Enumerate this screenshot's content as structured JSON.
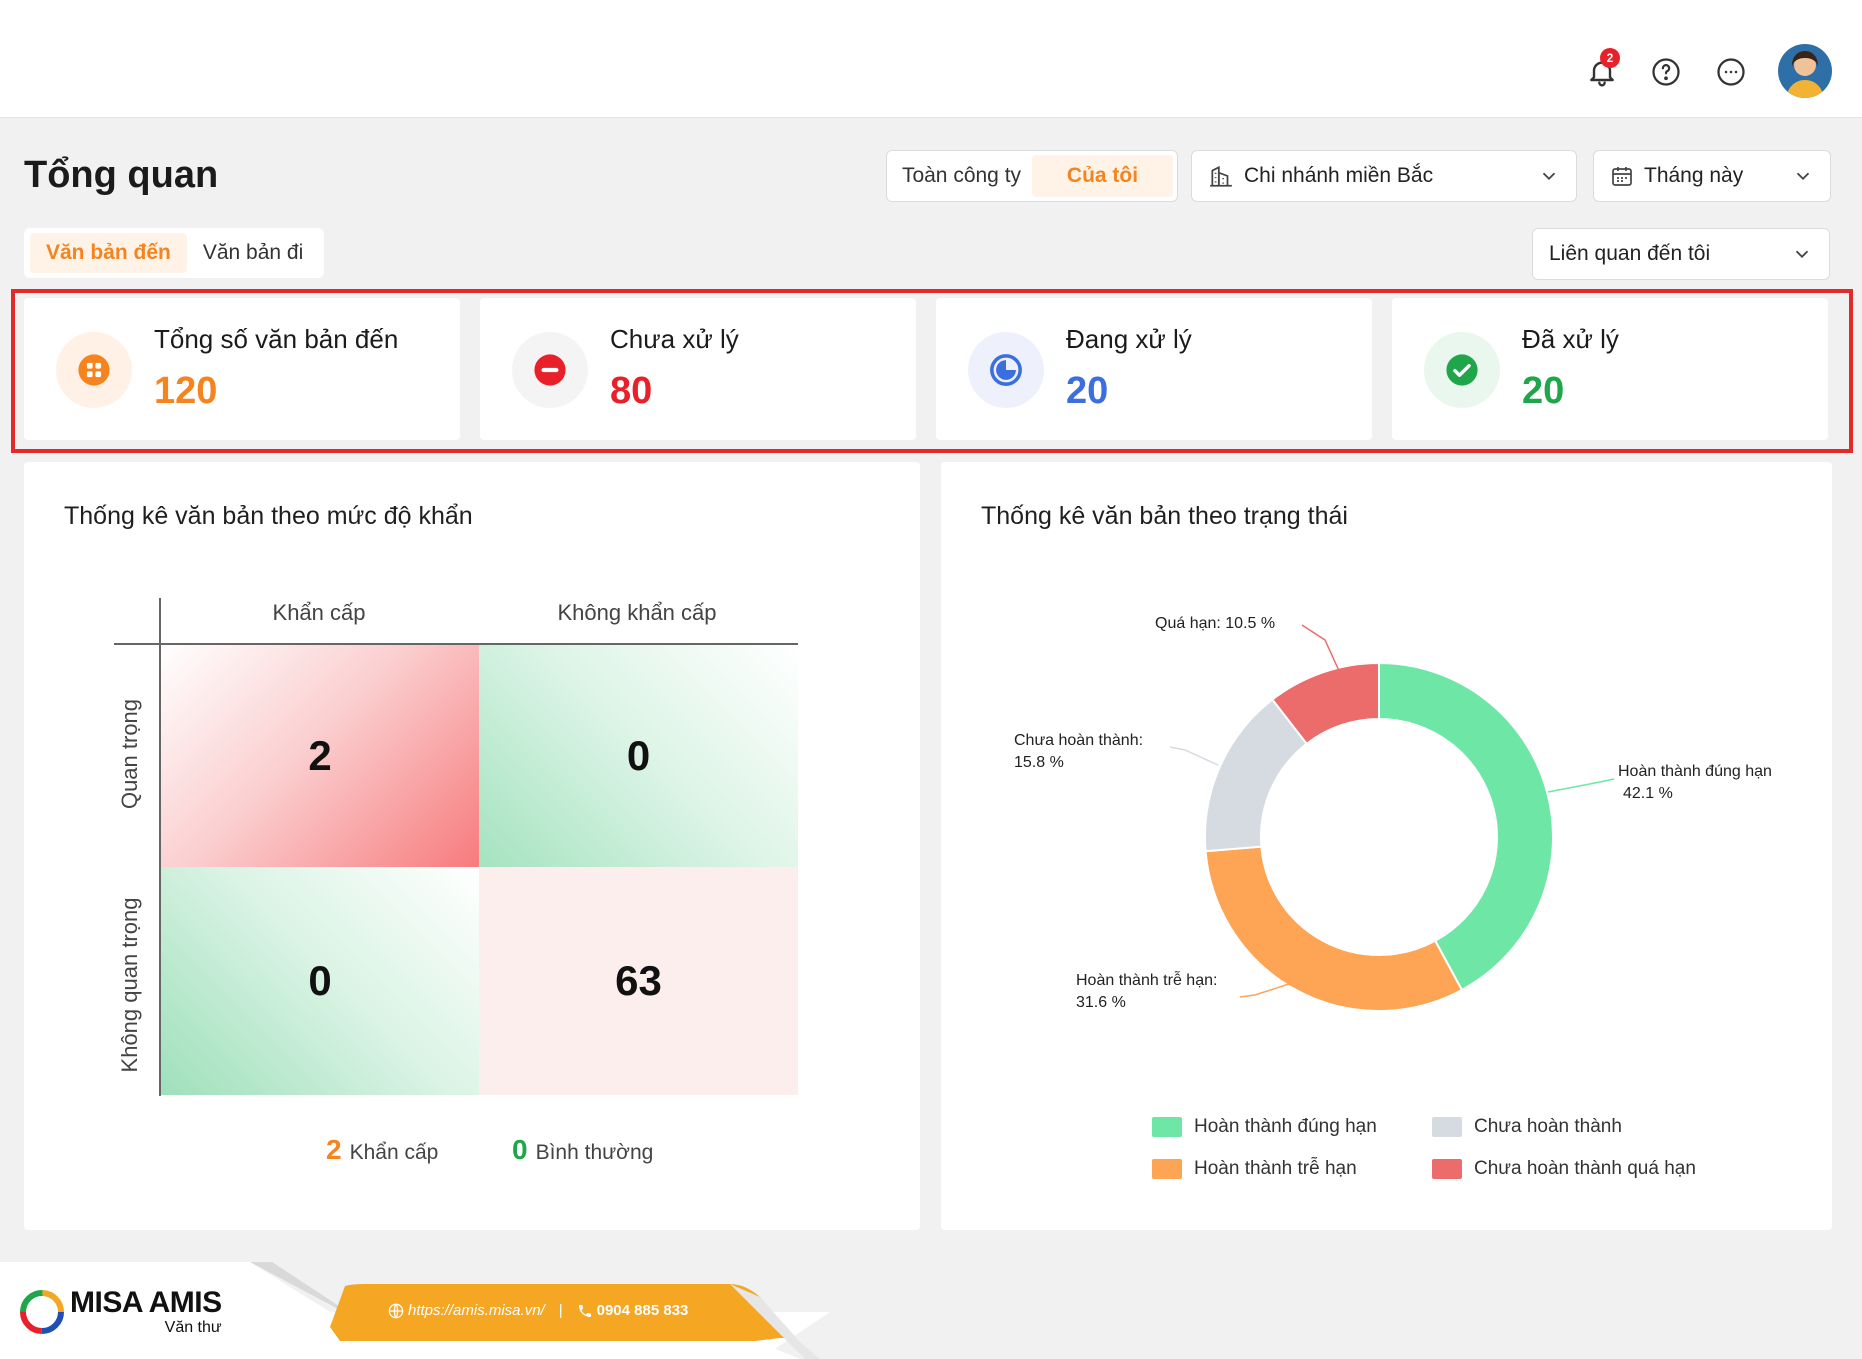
{
  "topbar": {
    "notification_count": "2",
    "icons": [
      "bell-icon",
      "help-icon",
      "more-icon",
      "avatar"
    ]
  },
  "page": {
    "title": "Tổng quan"
  },
  "filters": {
    "scope_options": [
      "Toàn công ty",
      "Của tôi"
    ],
    "scope_selected": "Của tôi",
    "branch": "Chi nhánh miền Bắc",
    "period": "Tháng này",
    "relation": "Liên quan đến tôi"
  },
  "doc_tabs": {
    "items": [
      "Văn bản đến",
      "Văn bản đi"
    ],
    "active": "Văn bản đến"
  },
  "kpis": [
    {
      "label": "Tổng số văn bản đến",
      "value": "120",
      "color": "#f5841f"
    },
    {
      "label": "Chưa xử lý",
      "value": "80",
      "color": "#e8202a"
    },
    {
      "label": "Đang xử lý",
      "value": "20",
      "color": "#3b6fe0"
    },
    {
      "label": "Đã xử lý",
      "value": "20",
      "color": "#1fa54a"
    }
  ],
  "urgency_panel": {
    "title": "Thống kê văn bản theo mức độ khẩn",
    "columns": [
      "Khẩn cấp",
      "Không khẩn cấp"
    ],
    "rows": [
      "Quan trọng",
      "Không quan trọng"
    ],
    "cells": {
      "important_urgent": "2",
      "important_not_urgent": "0",
      "not_important_urgent": "0",
      "not_important_not_urgent": "63"
    },
    "legend": [
      {
        "count": "2",
        "label": "Khẩn cấp",
        "color": "#f5841f"
      },
      {
        "count": "0",
        "label": "Bình thường",
        "color": "#1fa54a"
      }
    ]
  },
  "status_panel": {
    "title": "Thống kê văn bản theo trạng thái",
    "labels": {
      "on_time": [
        "Hoàn thành đúng hạn",
        "42.1 %"
      ],
      "late": [
        "Hoàn thành trễ hạn:",
        "31.6 %"
      ],
      "incomplete": [
        "Chưa hoàn thành:",
        "15.8 %"
      ],
      "overdue": [
        "Quá hạn: 10.5 %"
      ]
    },
    "legend": [
      {
        "label": "Hoàn thành đúng hạn",
        "color": "#6ee7a6"
      },
      {
        "label": "Chưa hoàn thành",
        "color": "#d6dbe2"
      },
      {
        "label": "Hoàn thành trễ hạn",
        "color": "#fda455"
      },
      {
        "label": "Chưa hoàn thành quá hạn",
        "color": "#ec6b6b"
      }
    ]
  },
  "chart_data": {
    "type": "pie",
    "title": "Thống kê văn bản theo trạng thái",
    "categories": [
      "Hoàn thành đúng hạn",
      "Hoàn thành trễ hạn",
      "Chưa hoàn thành",
      "Quá hạn"
    ],
    "values": [
      42.1,
      31.6,
      15.8,
      10.5
    ],
    "colors": [
      "#6ee7a6",
      "#fda455",
      "#d6dbe2",
      "#ec6b6b"
    ],
    "legend": "bottom"
  },
  "footer": {
    "brand": "MISA AMIS",
    "sub": "Văn thư",
    "url": "https://amis.misa.vn/",
    "phone": "0904 885 833"
  }
}
